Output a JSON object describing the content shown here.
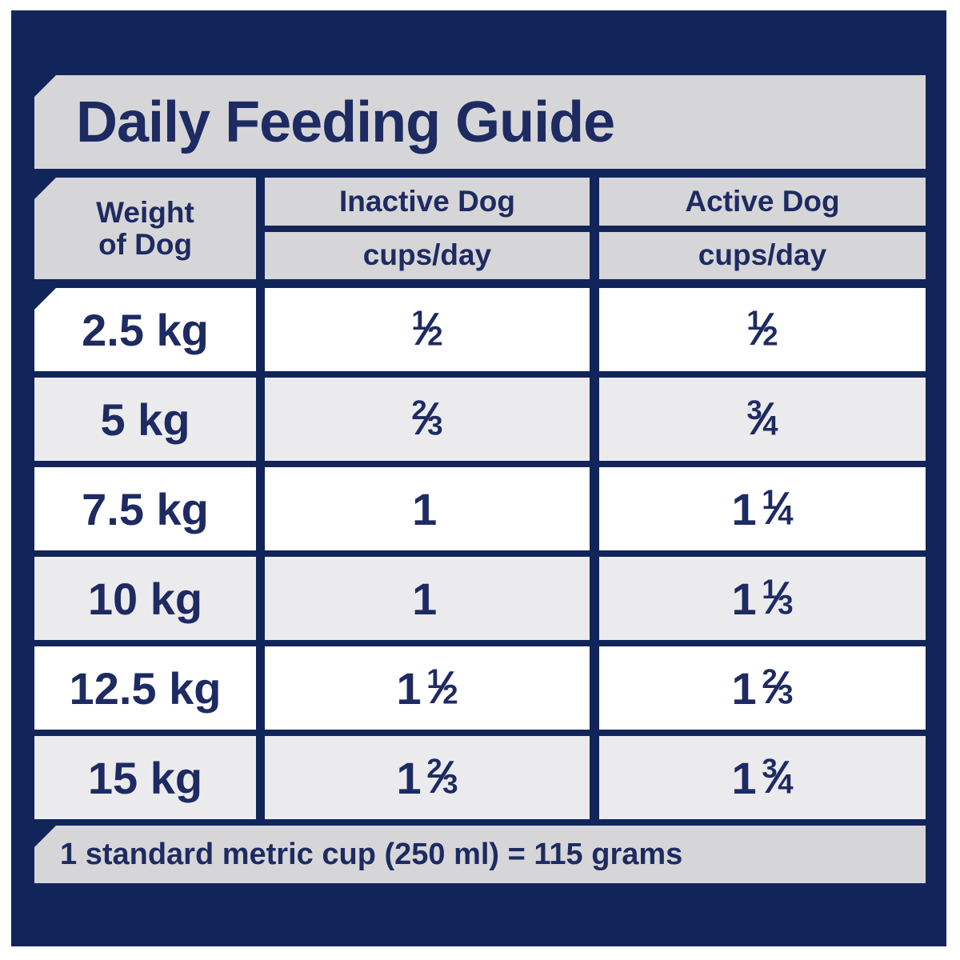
{
  "title": "Daily Feeding Guide",
  "header": {
    "weight_line1": "Weight",
    "weight_line2": "of Dog",
    "inactive_label": "Inactive Dog",
    "inactive_unit": "cups/day",
    "active_label": "Active Dog",
    "active_unit": "cups/day"
  },
  "rows": [
    {
      "weight": "2.5 kg",
      "inactive": "1/2",
      "active": "1/2"
    },
    {
      "weight": "5 kg",
      "inactive": "2/3",
      "active": "3/4"
    },
    {
      "weight": "7.5 kg",
      "inactive": "1",
      "active": "1 1/4"
    },
    {
      "weight": "10 kg",
      "inactive": "1",
      "active": "1 1/3"
    },
    {
      "weight": "12.5 kg",
      "inactive": "1 1/2",
      "active": "1 2/3"
    },
    {
      "weight": "15 kg",
      "inactive": "1 2/3",
      "active": "1 3/4"
    }
  ],
  "footnote": "1 standard metric cup (250 ml) = 115 grams",
  "colors": {
    "panel_navy": "#12255a",
    "text_navy": "#1e2b62",
    "bar_gray": "#d6d6d8",
    "row_gray": "#ebebed",
    "row_white": "#ffffff"
  },
  "chart_data": {
    "type": "table",
    "title": "Daily Feeding Guide",
    "columns": [
      "Weight of Dog",
      "Inactive Dog (cups/day)",
      "Active Dog (cups/day)"
    ],
    "rows": [
      [
        "2.5 kg",
        "1/2",
        "1/2"
      ],
      [
        "5 kg",
        "2/3",
        "3/4"
      ],
      [
        "7.5 kg",
        "1",
        "1 1/4"
      ],
      [
        "10 kg",
        "1",
        "1 1/3"
      ],
      [
        "12.5 kg",
        "1 1/2",
        "1 2/3"
      ],
      [
        "15 kg",
        "1 2/3",
        "1 3/4"
      ]
    ],
    "footnote": "1 standard metric cup (250 ml) = 115 grams",
    "layout": "header row split into dog-activity label over unit; alternating white/gray rows; navy background"
  }
}
